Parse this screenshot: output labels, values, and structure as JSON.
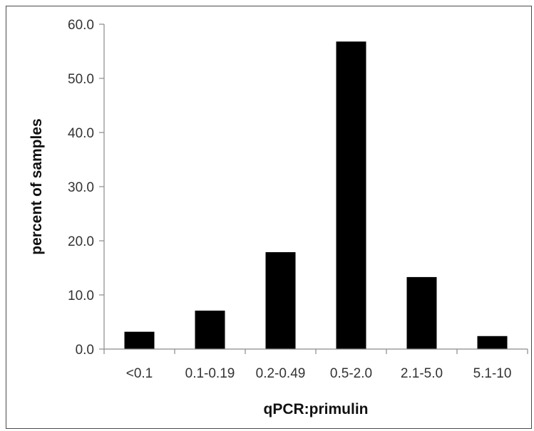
{
  "chart_data": {
    "type": "bar",
    "title": "",
    "xlabel": "qPCR:primulin",
    "ylabel": "percent of samples",
    "categories": [
      "<0.1",
      "0.1-0.19",
      "0.2-0.49",
      "0.5-2.0",
      "2.1-5.0",
      "5.1-10"
    ],
    "values": [
      3.2,
      7.1,
      17.9,
      56.8,
      13.3,
      2.4
    ],
    "ylim": [
      0,
      60
    ],
    "yticks": [
      "0.0",
      "10.0",
      "20.0",
      "30.0",
      "40.0",
      "50.0",
      "60.0"
    ],
    "grid": false,
    "legend": "none",
    "bar_color": "#000000"
  }
}
